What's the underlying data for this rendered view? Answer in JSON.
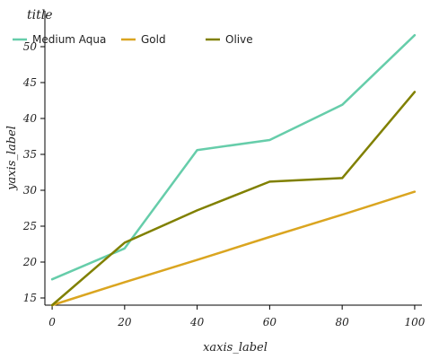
{
  "chart_data": {
    "type": "line",
    "title": "title",
    "xlabel": "xaxis_label",
    "ylabel": "yaxis_label",
    "xlim": [
      -2,
      102
    ],
    "ylim": [
      14,
      55
    ],
    "xticks": [
      0,
      20,
      40,
      60,
      80,
      100
    ],
    "yticks": [
      15,
      20,
      25,
      30,
      35,
      40,
      45,
      50
    ],
    "grid": false,
    "legend_position": "top-left",
    "series": [
      {
        "name": "Medium Aqua",
        "color": "#66CDAA",
        "x": [
          0,
          20,
          40,
          60,
          80,
          100
        ],
        "y": [
          17.6,
          21.9,
          35.6,
          37.0,
          41.9,
          51.6
        ]
      },
      {
        "name": "Gold",
        "color": "#DAA520",
        "x": [
          0,
          20,
          40,
          60,
          80,
          100
        ],
        "y": [
          14.0,
          17.2,
          20.3,
          23.5,
          26.6,
          29.8
        ]
      },
      {
        "name": "Olive",
        "color": "#808000",
        "x": [
          0,
          20,
          40,
          60,
          80,
          100
        ],
        "y": [
          14.0,
          22.7,
          27.2,
          31.2,
          31.7,
          43.7
        ]
      }
    ]
  }
}
